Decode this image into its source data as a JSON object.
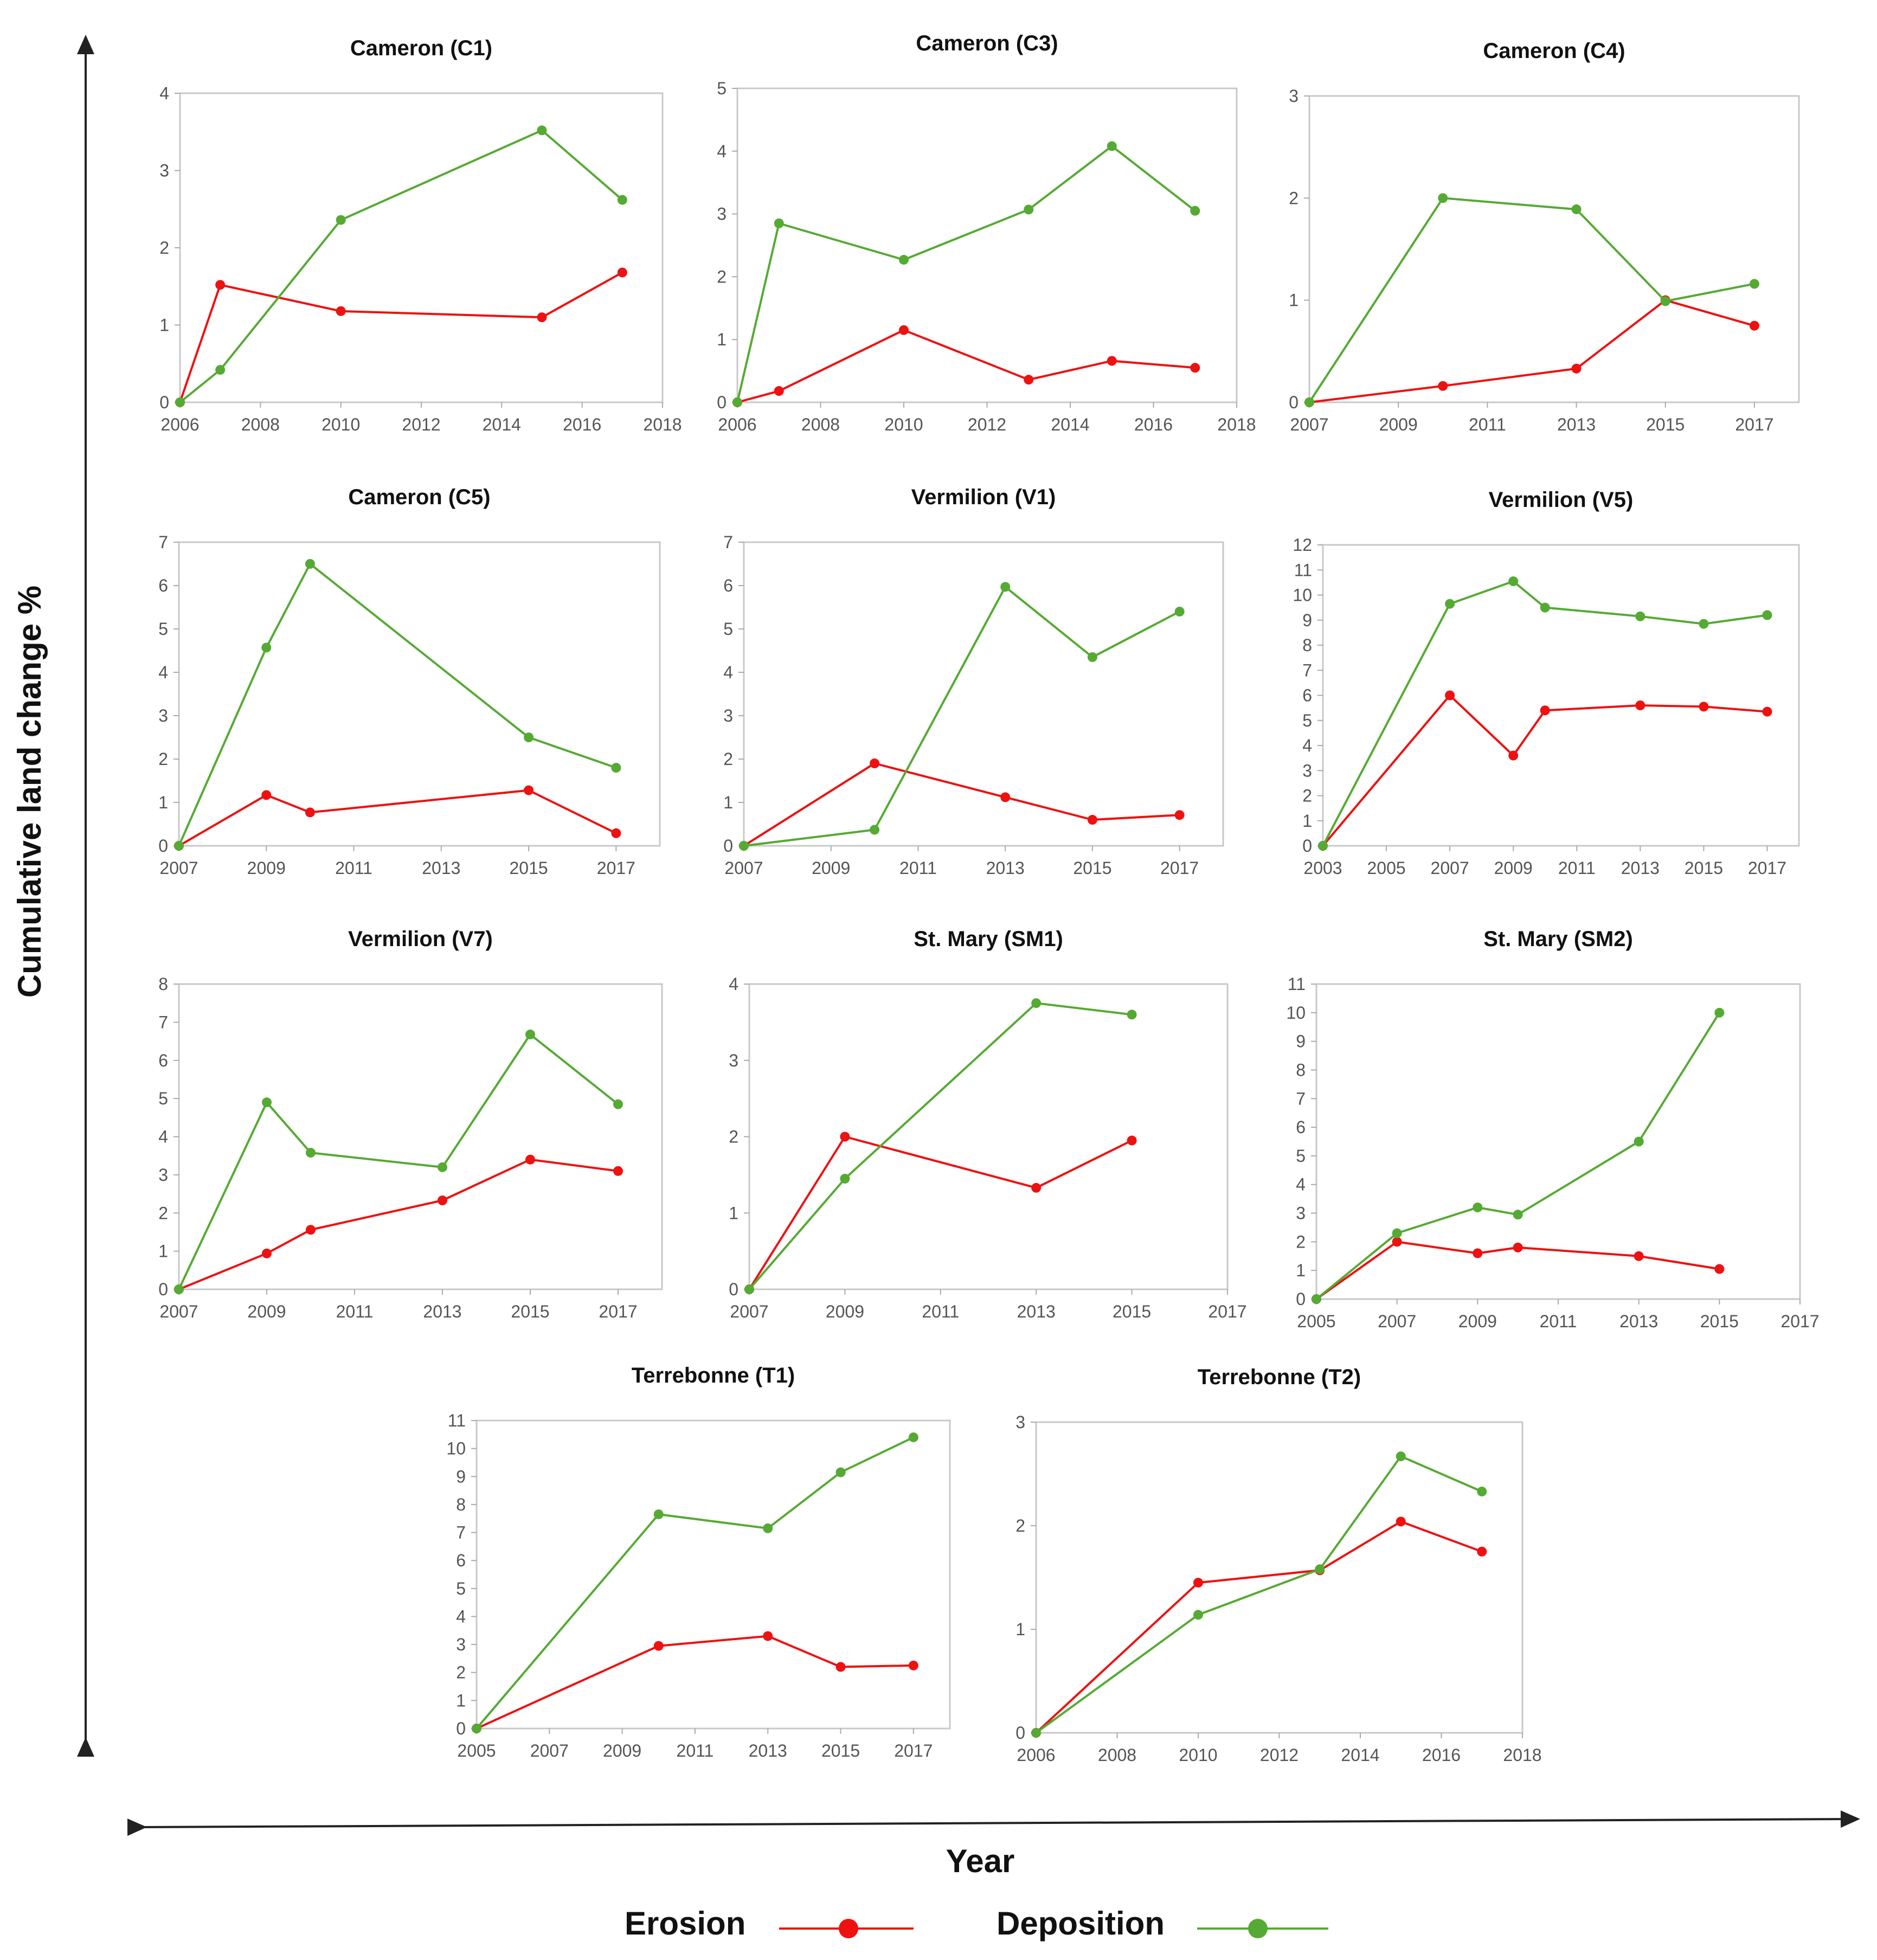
{
  "figure": {
    "y_axis_label": "Cumulative land change %",
    "x_axis_label": "Year",
    "legend": [
      {
        "label": "Erosion",
        "color": "#ee1111"
      },
      {
        "label": "Deposition",
        "color": "#55aa33"
      }
    ]
  },
  "colors": {
    "erosion": "#ee1111",
    "deposition": "#55aa33",
    "axis": "#bbbbbb",
    "text": "#111111"
  },
  "chart_data": [
    {
      "type": "line",
      "title": "Cameron (C1)",
      "xlim": [
        2006,
        2018
      ],
      "ylim": [
        0,
        4
      ],
      "xticks": [
        2006,
        2008,
        2010,
        2012,
        2014,
        2016,
        2018
      ],
      "yticks": [
        0,
        1,
        2,
        3,
        4
      ],
      "series": [
        {
          "name": "Erosion",
          "x": [
            2006,
            2007,
            2010,
            2015,
            2017
          ],
          "y": [
            0,
            1.52,
            1.18,
            1.1,
            1.68
          ]
        },
        {
          "name": "Deposition",
          "x": [
            2006,
            2007,
            2010,
            2015,
            2017
          ],
          "y": [
            0,
            0.42,
            2.36,
            3.52,
            2.62
          ]
        }
      ]
    },
    {
      "type": "line",
      "title": "Cameron (C3)",
      "xlim": [
        2006,
        2018
      ],
      "ylim": [
        0,
        5
      ],
      "xticks": [
        2006,
        2008,
        2010,
        2012,
        2014,
        2016,
        2018
      ],
      "yticks": [
        0,
        1,
        2,
        3,
        4,
        5
      ],
      "series": [
        {
          "name": "Erosion",
          "x": [
            2006,
            2007,
            2010,
            2013,
            2015,
            2017
          ],
          "y": [
            0,
            0.18,
            1.15,
            0.36,
            0.66,
            0.55
          ]
        },
        {
          "name": "Deposition",
          "x": [
            2006,
            2007,
            2010,
            2013,
            2015,
            2017
          ],
          "y": [
            0,
            2.85,
            2.27,
            3.07,
            4.08,
            3.05
          ]
        }
      ]
    },
    {
      "type": "line",
      "title": "Cameron (C4)",
      "xlim": [
        2007,
        2018
      ],
      "ylim": [
        0,
        3
      ],
      "xticks": [
        2007,
        2009,
        2011,
        2013,
        2015,
        2017
      ],
      "yticks": [
        0,
        1,
        2,
        3
      ],
      "series": [
        {
          "name": "Erosion",
          "x": [
            2007,
            2010,
            2013,
            2015,
            2017
          ],
          "y": [
            0,
            0.16,
            0.33,
            1.0,
            0.75
          ]
        },
        {
          "name": "Deposition",
          "x": [
            2007,
            2010,
            2013,
            2015,
            2017
          ],
          "y": [
            0,
            2.0,
            1.89,
            0.99,
            1.16
          ]
        }
      ]
    },
    {
      "type": "line",
      "title": "Cameron (C5)",
      "xlim": [
        2007,
        2018
      ],
      "ylim": [
        0,
        7
      ],
      "xticks": [
        2007,
        2009,
        2011,
        2013,
        2015,
        2017
      ],
      "yticks": [
        0,
        1,
        2,
        3,
        4,
        5,
        6,
        7
      ],
      "series": [
        {
          "name": "Erosion",
          "x": [
            2007,
            2009,
            2010,
            2015,
            2017
          ],
          "y": [
            0,
            1.17,
            0.77,
            1.28,
            0.29
          ]
        },
        {
          "name": "Deposition",
          "x": [
            2007,
            2009,
            2010,
            2015,
            2017
          ],
          "y": [
            0,
            4.57,
            6.5,
            2.5,
            1.8
          ]
        }
      ]
    },
    {
      "type": "line",
      "title": "Vermilion (V1)",
      "xlim": [
        2007,
        2018
      ],
      "ylim": [
        0,
        7
      ],
      "xticks": [
        2007,
        2009,
        2011,
        2013,
        2015,
        2017
      ],
      "yticks": [
        0,
        1,
        2,
        3,
        4,
        5,
        6,
        7
      ],
      "series": [
        {
          "name": "Erosion",
          "x": [
            2007,
            2010,
            2013,
            2015,
            2017
          ],
          "y": [
            0,
            1.9,
            1.12,
            0.6,
            0.71
          ]
        },
        {
          "name": "Deposition",
          "x": [
            2007,
            2010,
            2013,
            2015,
            2017
          ],
          "y": [
            0,
            0.37,
            5.97,
            4.35,
            5.4
          ]
        }
      ]
    },
    {
      "type": "line",
      "title": "Vermilion (V5)",
      "xlim": [
        2003,
        2018
      ],
      "ylim": [
        0,
        12
      ],
      "xticks": [
        2003,
        2005,
        2007,
        2009,
        2011,
        2013,
        2015,
        2017
      ],
      "yticks": [
        0,
        1,
        2,
        3,
        4,
        5,
        6,
        7,
        8,
        9,
        10,
        11,
        12
      ],
      "series": [
        {
          "name": "Erosion",
          "x": [
            2003,
            2007,
            2009,
            2010,
            2013,
            2015,
            2017
          ],
          "y": [
            0,
            6.0,
            3.6,
            5.4,
            5.6,
            5.55,
            5.35
          ]
        },
        {
          "name": "Deposition",
          "x": [
            2003,
            2007,
            2009,
            2010,
            2013,
            2015,
            2017
          ],
          "y": [
            0,
            9.65,
            10.55,
            9.5,
            9.15,
            8.85,
            9.2
          ]
        }
      ]
    },
    {
      "type": "line",
      "title": "Vermilion (V7)",
      "xlim": [
        2007,
        2018
      ],
      "ylim": [
        0,
        8
      ],
      "xticks": [
        2007,
        2009,
        2011,
        2013,
        2015,
        2017
      ],
      "yticks": [
        0,
        1,
        2,
        3,
        4,
        5,
        6,
        7,
        8
      ],
      "series": [
        {
          "name": "Erosion",
          "x": [
            2007,
            2009,
            2010,
            2013,
            2015,
            2017
          ],
          "y": [
            0,
            0.94,
            1.56,
            2.33,
            3.4,
            3.1
          ]
        },
        {
          "name": "Deposition",
          "x": [
            2007,
            2009,
            2010,
            2013,
            2015,
            2017
          ],
          "y": [
            0,
            4.9,
            3.58,
            3.2,
            6.68,
            4.85
          ]
        }
      ]
    },
    {
      "type": "line",
      "title": "St. Mary (SM1)",
      "xlim": [
        2007,
        2017
      ],
      "ylim": [
        0,
        4
      ],
      "xticks": [
        2007,
        2009,
        2011,
        2013,
        2015,
        2017
      ],
      "yticks": [
        0,
        1,
        2,
        3,
        4
      ],
      "series": [
        {
          "name": "Erosion",
          "x": [
            2007,
            2009,
            2013,
            2015
          ],
          "y": [
            0,
            2.0,
            1.33,
            1.95
          ]
        },
        {
          "name": "Deposition",
          "x": [
            2007,
            2009,
            2013,
            2015
          ],
          "y": [
            0,
            1.45,
            3.75,
            3.6
          ]
        }
      ]
    },
    {
      "type": "line",
      "title": "St. Mary (SM2)",
      "xlim": [
        2005,
        2017
      ],
      "ylim": [
        0,
        11
      ],
      "xticks": [
        2005,
        2007,
        2009,
        2011,
        2013,
        2015,
        2017
      ],
      "yticks": [
        0,
        1,
        2,
        3,
        4,
        5,
        6,
        7,
        8,
        9,
        10,
        11
      ],
      "series": [
        {
          "name": "Erosion",
          "x": [
            2005,
            2007,
            2009,
            2010,
            2013,
            2015
          ],
          "y": [
            0,
            2.0,
            1.6,
            1.8,
            1.5,
            1.05
          ]
        },
        {
          "name": "Deposition",
          "x": [
            2005,
            2007,
            2009,
            2010,
            2013,
            2015
          ],
          "y": [
            0,
            2.3,
            3.2,
            2.95,
            5.5,
            10.0
          ]
        }
      ]
    },
    {
      "type": "line",
      "title": "Terrebonne (T1)",
      "xlim": [
        2005,
        2018
      ],
      "ylim": [
        0,
        11
      ],
      "xticks": [
        2005,
        2007,
        2009,
        2011,
        2013,
        2015,
        2017
      ],
      "yticks": [
        0,
        1,
        2,
        3,
        4,
        5,
        6,
        7,
        8,
        9,
        10,
        11
      ],
      "series": [
        {
          "name": "Erosion",
          "x": [
            2005,
            2010,
            2013,
            2015,
            2017
          ],
          "y": [
            0,
            2.95,
            3.3,
            2.2,
            2.25
          ]
        },
        {
          "name": "Deposition",
          "x": [
            2005,
            2010,
            2013,
            2015,
            2017
          ],
          "y": [
            0,
            7.65,
            7.15,
            9.15,
            10.4
          ]
        }
      ]
    },
    {
      "type": "line",
      "title": "Terrebonne (T2)",
      "xlim": [
        2006,
        2018
      ],
      "ylim": [
        0,
        3
      ],
      "xticks": [
        2006,
        2008,
        2010,
        2012,
        2014,
        2016,
        2018
      ],
      "yticks": [
        0,
        1,
        2,
        3
      ],
      "series": [
        {
          "name": "Erosion",
          "x": [
            2006,
            2010,
            2013,
            2015,
            2017
          ],
          "y": [
            0,
            1.45,
            1.57,
            2.04,
            1.75
          ]
        },
        {
          "name": "Deposition",
          "x": [
            2006,
            2010,
            2013,
            2015,
            2017
          ],
          "y": [
            0,
            1.14,
            1.58,
            2.67,
            2.33
          ]
        }
      ]
    }
  ]
}
